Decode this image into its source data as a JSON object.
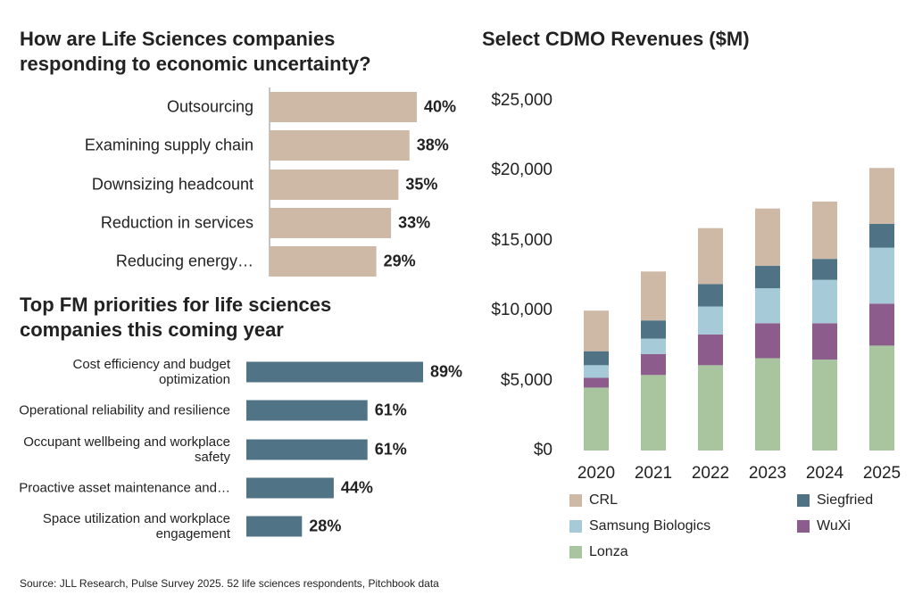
{
  "chart_data": [
    {
      "type": "hbar",
      "title": "How are Life Sciences companies responding to economic uncertainty?",
      "categories": [
        "Outsourcing",
        "Examining supply chain",
        "Downsizing headcount",
        "Reduction in services",
        "Reducing energy…"
      ],
      "values": [
        40,
        38,
        35,
        33,
        29
      ],
      "value_labels": [
        "40%",
        "38%",
        "35%",
        "33%",
        "29%"
      ],
      "color": "#cdb9a6"
    },
    {
      "type": "hbar",
      "title": "Top FM priorities for life sciences companies this coming year",
      "categories": [
        "Cost efficiency and budget optimization",
        "Operational reliability and resilience",
        "Occupant wellbeing and workplace safety",
        "Proactive asset maintenance and…",
        "Space utilization and workplace engagement"
      ],
      "values": [
        89,
        61,
        61,
        44,
        28
      ],
      "value_labels": [
        "89%",
        "61%",
        "61%",
        "44%",
        "28%"
      ],
      "color": "#507385"
    },
    {
      "type": "stacked_bar",
      "title": "Select CDMO Revenues ($M)",
      "categories": [
        "2020",
        "2021",
        "2022",
        "2023",
        "2024",
        "2025"
      ],
      "series": [
        {
          "name": "Lonza",
          "color": "#a9c5a0",
          "values": [
            4500,
            5400,
            6100,
            6600,
            6500,
            7500
          ]
        },
        {
          "name": "WuXi",
          "color": "#8b5c8c",
          "values": [
            700,
            1500,
            2200,
            2500,
            2600,
            3000
          ]
        },
        {
          "name": "Samsung Biologics",
          "color": "#a6cad8",
          "values": [
            900,
            1100,
            2000,
            2500,
            3100,
            4000
          ]
        },
        {
          "name": "Siegfried",
          "color": "#4f7385",
          "values": [
            1000,
            1300,
            1600,
            1600,
            1500,
            1700
          ]
        },
        {
          "name": "CRL",
          "color": "#cdb9a6",
          "values": [
            2900,
            3500,
            4000,
            4100,
            4100,
            4000
          ]
        }
      ],
      "ylim": [
        0,
        25000
      ],
      "yticks": [
        {
          "value": 0,
          "label": "$0"
        },
        {
          "value": 5000,
          "label": "$5,000"
        },
        {
          "value": 10000,
          "label": "$10,000"
        },
        {
          "value": 15000,
          "label": "$15,000"
        },
        {
          "value": 20000,
          "label": "$20,000"
        },
        {
          "value": 25000,
          "label": "$25,000"
        }
      ],
      "grid": false
    }
  ],
  "source": "Source: JLL Research, Pulse Survey 2025. 52 life sciences respondents, Pitchbook data"
}
